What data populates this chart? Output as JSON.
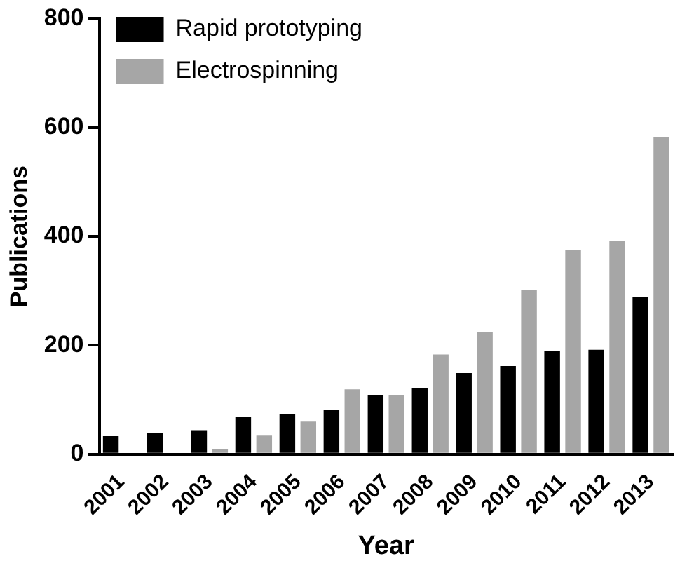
{
  "chart_data": {
    "type": "bar",
    "xlabel": "Year",
    "ylabel": "Publications",
    "categories": [
      "2001",
      "2002",
      "2003",
      "2004",
      "2005",
      "2006",
      "2007",
      "2008",
      "2009",
      "2010",
      "2011",
      "2012",
      "2013"
    ],
    "series": [
      {
        "name": "Rapid prototyping",
        "color": "#000000",
        "values": [
          33,
          39,
          44,
          68,
          74,
          82,
          108,
          122,
          149,
          162,
          189,
          192,
          288
        ]
      },
      {
        "name": "Electrospinning",
        "color": "#a6a6a6",
        "values": [
          null,
          null,
          9,
          34,
          60,
          119,
          108,
          183,
          224,
          302,
          375,
          391,
          582
        ]
      }
    ],
    "ylim": [
      0,
      800
    ],
    "yticks": [
      0,
      200,
      400,
      600,
      800
    ],
    "grid": false,
    "legend": "top left"
  }
}
